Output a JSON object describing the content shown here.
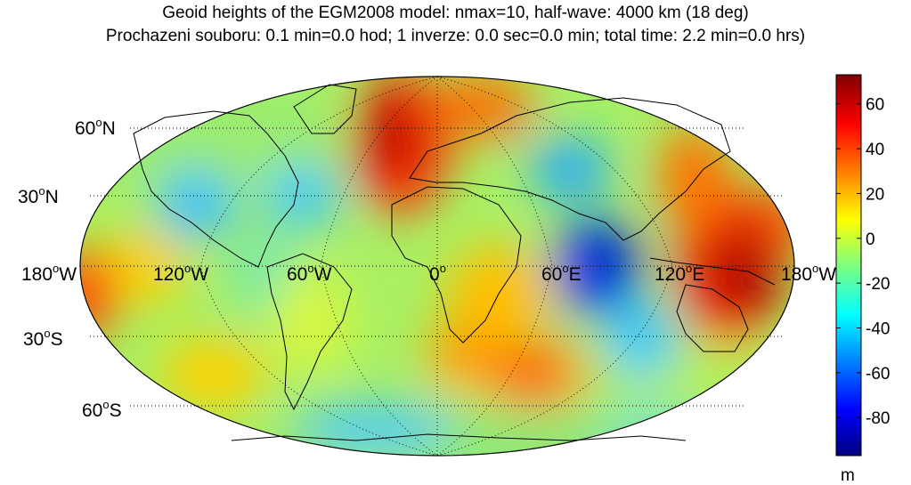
{
  "title_line1": "Geoid heights of the EGM2008 model: nmax=10, half-wave: 4000 km (18 deg)",
  "title_line2": "Prochazeni souboru: 0.1 min=0.0 hod; 1 inverze: 0.0 sec=0.0 min; total time: 2.2 min=0.0 hrs)",
  "colorbar": {
    "unit": "m",
    "min": -97,
    "max": 73,
    "ticks": [
      {
        "value": 60,
        "label": "60"
      },
      {
        "value": 40,
        "label": "40"
      },
      {
        "value": 20,
        "label": "20"
      },
      {
        "value": 0,
        "label": "0"
      },
      {
        "value": -20,
        "label": "-20"
      },
      {
        "value": -40,
        "label": "-40"
      },
      {
        "value": -60,
        "label": "-60"
      },
      {
        "value": -80,
        "label": "-80"
      }
    ],
    "colormap": [
      "#00007f",
      "#0000ff",
      "#007fff",
      "#00ffff",
      "#7fff7f",
      "#ffff00",
      "#ff7f00",
      "#ff0000",
      "#7f0000"
    ]
  },
  "map": {
    "projection": "Robinson",
    "lat_labels": [
      {
        "deg": "60",
        "hemi": "N"
      },
      {
        "deg": "30",
        "hemi": "N"
      },
      {
        "deg": "30",
        "hemi": "S"
      },
      {
        "deg": "60",
        "hemi": "S"
      }
    ],
    "lon_labels": [
      {
        "deg": "180",
        "hemi": "W"
      },
      {
        "deg": "120",
        "hemi": "W"
      },
      {
        "deg": "60",
        "hemi": "W"
      },
      {
        "deg": "0",
        "hemi": ""
      },
      {
        "deg": "60",
        "hemi": "E"
      },
      {
        "deg": "120",
        "hemi": "E"
      },
      {
        "deg": "180",
        "hemi": "W"
      }
    ],
    "features": [
      {
        "name": "north-atlantic-high",
        "color": "#c00000"
      },
      {
        "name": "indian-ocean-low",
        "color": "#0010c0"
      },
      {
        "name": "new-guinea-high",
        "color": "#b00000"
      }
    ]
  }
}
